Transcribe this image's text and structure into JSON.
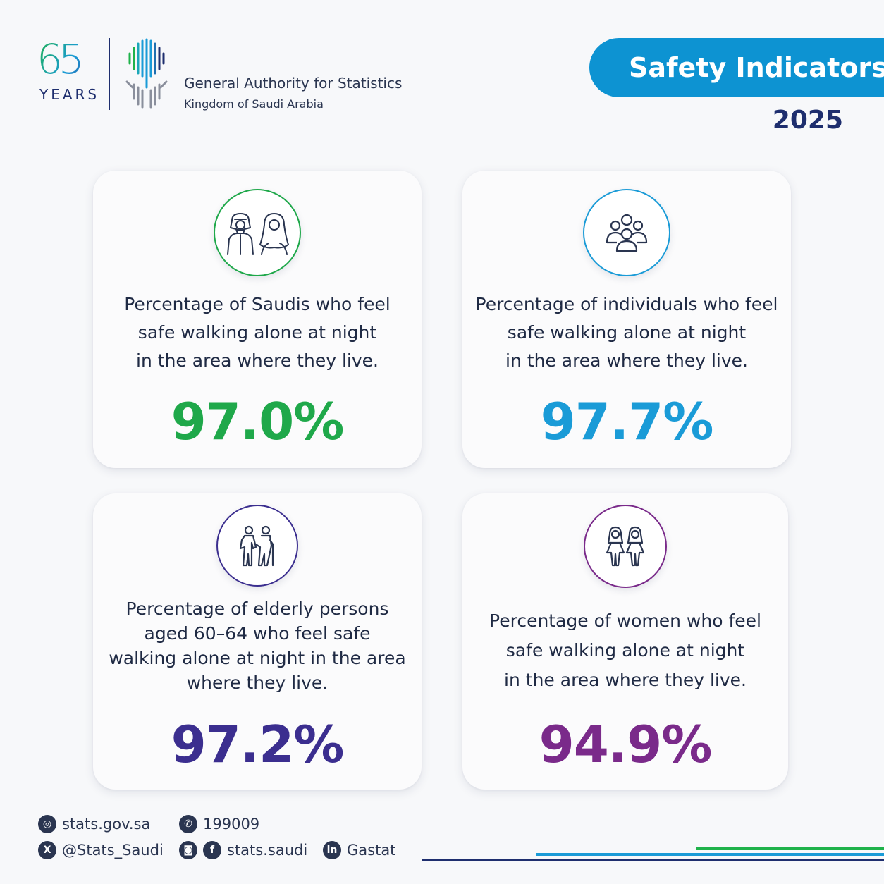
{
  "header": {
    "anniversary_number": "65",
    "anniversary_label": "YEARS",
    "org_name": "General Authority for Statistics",
    "org_country": "Kingdom of Saudi Arabia",
    "title": "Safety Indicators",
    "year": "2025"
  },
  "colors": {
    "green": "#1fa84a",
    "blue": "#1a9bd7",
    "indigo": "#3b2e8f",
    "purple": "#7a2a8a",
    "navy": "#1e2e6e",
    "pill": "#0d93d2"
  },
  "cards": [
    {
      "icon": "saudi-man-woman-icon",
      "description": "Percentage of Saudis who feel\nsafe walking alone at night\nin the area where they live.",
      "value": "97.0%"
    },
    {
      "icon": "group-people-icon",
      "description": "Percentage of individuals who feel\nsafe walking alone at night\nin the area where they live.",
      "value": "97.7%"
    },
    {
      "icon": "elderly-couple-icon",
      "description": "Percentage of elderly persons\naged 60–64 who feel safe\nwalking alone at night in the area\nwhere they live.",
      "value": "97.2%"
    },
    {
      "icon": "two-women-icon",
      "description": "Percentage of women who feel\nsafe walking alone at night\nin the area where they live.",
      "value": "94.9%"
    }
  ],
  "footer": {
    "website": "stats.gov.sa",
    "phone": "199009",
    "x_handle": "@Stats_Saudi",
    "social": "stats.saudi",
    "linkedin": "Gastat"
  }
}
